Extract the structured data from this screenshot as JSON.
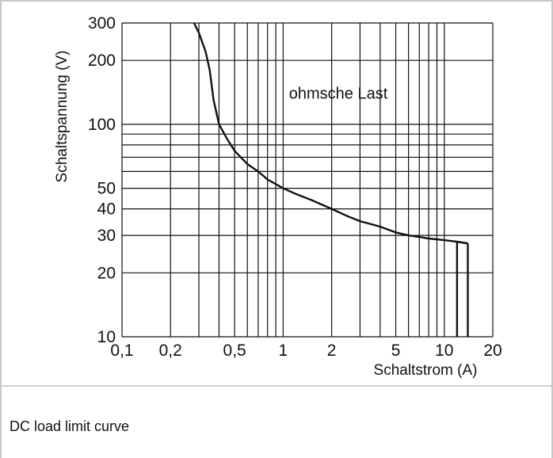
{
  "chart_data": {
    "type": "line",
    "title": "",
    "xlabel": "Schaltstrom (A)",
    "ylabel": "Schaltspannung (V)",
    "xscale": "log",
    "yscale": "log",
    "xlim": [
      0.1,
      20
    ],
    "ylim": [
      10,
      300
    ],
    "x_ticks": [
      0.1,
      0.2,
      0.5,
      1,
      2,
      5,
      10,
      20
    ],
    "x_tick_labels": [
      "0,1",
      "0,2",
      "0,5",
      "1",
      "2",
      "5",
      "10",
      "20"
    ],
    "y_ticks": [
      10,
      20,
      30,
      40,
      50,
      100,
      200,
      300
    ],
    "y_tick_labels": [
      "10",
      "20",
      "30",
      "40",
      "50",
      "100",
      "200",
      "300"
    ],
    "x_gridlines": [
      0.1,
      0.2,
      0.3,
      0.4,
      0.5,
      0.6,
      0.7,
      0.8,
      0.9,
      1,
      2,
      3,
      4,
      5,
      6,
      7,
      8,
      9,
      10,
      20
    ],
    "y_gridlines": [
      10,
      20,
      30,
      40,
      50,
      60,
      70,
      80,
      90,
      100,
      200,
      300
    ],
    "grid": true,
    "annotation": "ohmsche Last",
    "series": [
      {
        "x": [
          0.28,
          0.3,
          0.33,
          0.35,
          0.37,
          0.4,
          0.45,
          0.5,
          0.6,
          0.7,
          0.8,
          1,
          1.2,
          1.5,
          2,
          2.5,
          3,
          4,
          5,
          6,
          7,
          8,
          10,
          12,
          14
        ],
        "y": [
          300,
          270,
          220,
          180,
          130,
          100,
          85,
          75,
          65,
          60,
          55,
          50,
          47,
          44,
          40,
          37,
          35,
          33,
          31,
          30,
          29.5,
          29,
          28.5,
          28,
          27.5
        ]
      }
    ],
    "vertical_drops": [
      12,
      14
    ]
  },
  "caption": "DC load limit curve"
}
